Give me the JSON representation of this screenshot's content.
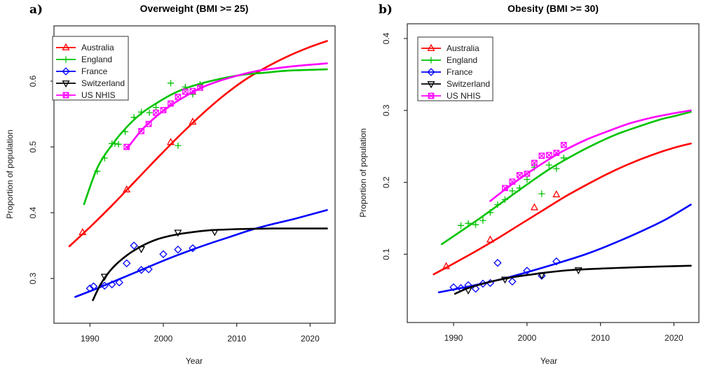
{
  "figure": {
    "background": "#ffffff",
    "box_color": "#2b2b2b",
    "legend_entries": [
      "Australia",
      "England",
      "France",
      "Switzerland",
      "US NHIS"
    ]
  },
  "chart_data": [
    {
      "type": "line",
      "panel_label": "a)",
      "title": "Overweight (BMI >= 25)",
      "xlabel": "Year",
      "ylabel": "Proportion of population",
      "xlim": [
        1985.1,
        2023.4
      ],
      "ylim": [
        0.232,
        0.684
      ],
      "xticks": [
        1990,
        2000,
        2010,
        2020
      ],
      "yticks": [
        0.3,
        0.4,
        0.5,
        0.6
      ],
      "grid": false,
      "legend_position": "top-left",
      "series": [
        {
          "name": "Australia",
          "color": "#ff0000",
          "marker": "triangle-up",
          "points": [
            [
              1989,
              0.37
            ],
            [
              1995,
              0.435
            ],
            [
              2001,
              0.507
            ],
            [
              2004,
              0.538
            ]
          ],
          "fit": [
            [
              1987.2,
              0.349
            ],
            [
              1990,
              0.378
            ],
            [
              1993,
              0.411
            ],
            [
              1996,
              0.446
            ],
            [
              1999,
              0.481
            ],
            [
              2002,
              0.515
            ],
            [
              2005,
              0.547
            ],
            [
              2008,
              0.576
            ],
            [
              2011,
              0.601
            ],
            [
              2014,
              0.621
            ],
            [
              2017,
              0.638
            ],
            [
              2020,
              0.652
            ],
            [
              2022.3,
              0.661
            ]
          ]
        },
        {
          "name": "England",
          "color": "#00c300",
          "marker": "plus",
          "points": [
            [
              1991,
              0.463
            ],
            [
              1992,
              0.483
            ],
            [
              1993,
              0.505
            ],
            [
              1993.4,
              0.505
            ],
            [
              1993.9,
              0.504
            ],
            [
              1994.8,
              0.523
            ],
            [
              1996,
              0.545
            ],
            [
              1997,
              0.553
            ],
            [
              1998.1,
              0.552
            ],
            [
              1999,
              0.56
            ],
            [
              2001,
              0.597
            ],
            [
              2002,
              0.502
            ],
            [
              2003,
              0.591
            ],
            [
              2004,
              0.58
            ],
            [
              2005,
              0.595
            ]
          ],
          "fit": [
            [
              1989.2,
              0.413
            ],
            [
              1991,
              0.468
            ],
            [
              1993,
              0.503
            ],
            [
              1995,
              0.53
            ],
            [
              1997,
              0.551
            ],
            [
              1999,
              0.566
            ],
            [
              2001,
              0.579
            ],
            [
              2003,
              0.589
            ],
            [
              2005,
              0.596
            ],
            [
              2008,
              0.604
            ],
            [
              2011,
              0.61
            ],
            [
              2014,
              0.613
            ],
            [
              2017,
              0.616
            ],
            [
              2022.3,
              0.618
            ]
          ]
        },
        {
          "name": "France",
          "color": "#0000ff",
          "marker": "diamond",
          "points": [
            [
              1990,
              0.285
            ],
            [
              1990.5,
              0.288
            ],
            [
              1992,
              0.289
            ],
            [
              1993,
              0.291
            ],
            [
              1994,
              0.294
            ],
            [
              1995,
              0.323
            ],
            [
              1996,
              0.35
            ],
            [
              1997,
              0.313
            ],
            [
              1998,
              0.314
            ],
            [
              2000,
              0.337
            ],
            [
              2002,
              0.344
            ],
            [
              2004,
              0.346
            ]
          ],
          "fit": [
            [
              1988,
              0.272
            ],
            [
              1991,
              0.285
            ],
            [
              1994,
              0.299
            ],
            [
              1997,
              0.313
            ],
            [
              2000,
              0.327
            ],
            [
              2003,
              0.34
            ],
            [
              2006,
              0.352
            ],
            [
              2009,
              0.363
            ],
            [
              2012,
              0.374
            ],
            [
              2015,
              0.383
            ],
            [
              2018,
              0.391
            ],
            [
              2022.3,
              0.404
            ]
          ]
        },
        {
          "name": "Switzerland",
          "color": "#000000",
          "marker": "triangle-down",
          "points": [
            [
              1992,
              0.303
            ],
            [
              1997,
              0.345
            ],
            [
              2002,
              0.37
            ],
            [
              2007,
              0.371
            ]
          ],
          "fit": [
            [
              1990.4,
              0.267
            ],
            [
              1991.5,
              0.292
            ],
            [
              1993,
              0.315
            ],
            [
              1995,
              0.335
            ],
            [
              1997,
              0.349
            ],
            [
              1999,
              0.359
            ],
            [
              2001,
              0.365
            ],
            [
              2003,
              0.369
            ],
            [
              2006,
              0.373
            ],
            [
              2010,
              0.375
            ],
            [
              2015,
              0.376
            ],
            [
              2022.3,
              0.376
            ]
          ]
        },
        {
          "name": "US NHIS",
          "color": "#ff00ff",
          "marker": "square-x",
          "points": [
            [
              1995,
              0.5
            ],
            [
              1997,
              0.524
            ],
            [
              1998,
              0.535
            ],
            [
              1999,
              0.552
            ],
            [
              2000,
              0.556
            ],
            [
              2001,
              0.566
            ],
            [
              2002,
              0.576
            ],
            [
              2003,
              0.584
            ],
            [
              2004,
              0.585
            ],
            [
              2005,
              0.59
            ]
          ],
          "fit": [
            [
              1995.1,
              0.498
            ],
            [
              1997,
              0.525
            ],
            [
              1999,
              0.546
            ],
            [
              2001,
              0.563
            ],
            [
              2003,
              0.577
            ],
            [
              2005,
              0.589
            ],
            [
              2007,
              0.598
            ],
            [
              2009,
              0.605
            ],
            [
              2011,
              0.611
            ],
            [
              2013,
              0.616
            ],
            [
              2015,
              0.619
            ],
            [
              2018,
              0.623
            ],
            [
              2022.3,
              0.627
            ]
          ]
        }
      ]
    },
    {
      "type": "line",
      "panel_label": "b)",
      "title": "Obesity (BMI >= 30)",
      "xlabel": "Year",
      "ylabel": "Proportion of population",
      "xlim": [
        1983.7,
        2023.4
      ],
      "ylim": [
        0.005,
        0.4205
      ],
      "xticks": [
        1990,
        2000,
        2010,
        2020
      ],
      "yticks": [
        0.1,
        0.2,
        0.3,
        0.4
      ],
      "grid": false,
      "legend_position": "top-left",
      "series": [
        {
          "name": "Australia",
          "color": "#ff0000",
          "marker": "triangle-up",
          "points": [
            [
              1989,
              0.083
            ],
            [
              1995,
              0.12
            ],
            [
              2001,
              0.165
            ],
            [
              2004,
              0.183
            ]
          ],
          "fit": [
            [
              1987.3,
              0.072
            ],
            [
              1990,
              0.087
            ],
            [
              1993,
              0.104
            ],
            [
              1996,
              0.122
            ],
            [
              1999,
              0.141
            ],
            [
              2002,
              0.16
            ],
            [
              2005,
              0.179
            ],
            [
              2008,
              0.196
            ],
            [
              2011,
              0.212
            ],
            [
              2014,
              0.226
            ],
            [
              2017,
              0.238
            ],
            [
              2020,
              0.248
            ],
            [
              2022.3,
              0.254
            ]
          ]
        },
        {
          "name": "England",
          "color": "#00c300",
          "marker": "plus",
          "points": [
            [
              1991,
              0.14
            ],
            [
              1992,
              0.143
            ],
            [
              1993,
              0.141
            ],
            [
              1994,
              0.147
            ],
            [
              1995,
              0.158
            ],
            [
              1996,
              0.169
            ],
            [
              1997,
              0.176
            ],
            [
              1998,
              0.188
            ],
            [
              1999,
              0.192
            ],
            [
              2000,
              0.204
            ],
            [
              2001,
              0.221
            ],
            [
              2002,
              0.184
            ],
            [
              2003,
              0.224
            ],
            [
              2004,
              0.219
            ],
            [
              2005,
              0.234
            ]
          ],
          "fit": [
            [
              1988.4,
              0.114
            ],
            [
              1991,
              0.132
            ],
            [
              1994,
              0.153
            ],
            [
              1997,
              0.175
            ],
            [
              2000,
              0.197
            ],
            [
              2003,
              0.218
            ],
            [
              2006,
              0.236
            ],
            [
              2009,
              0.252
            ],
            [
              2012,
              0.266
            ],
            [
              2015,
              0.277
            ],
            [
              2018,
              0.287
            ],
            [
              2020,
              0.292
            ],
            [
              2022.3,
              0.298
            ]
          ]
        },
        {
          "name": "France",
          "color": "#0000ff",
          "marker": "diamond",
          "points": [
            [
              1990,
              0.054
            ],
            [
              1991,
              0.053
            ],
            [
              1992,
              0.057
            ],
            [
              1993,
              0.052
            ],
            [
              1994,
              0.059
            ],
            [
              1995,
              0.06
            ],
            [
              1996,
              0.088
            ],
            [
              1998,
              0.062
            ],
            [
              2000,
              0.077
            ],
            [
              2002,
              0.07
            ],
            [
              2004,
              0.09
            ]
          ],
          "fit": [
            [
              1988,
              0.047
            ],
            [
              1992,
              0.055
            ],
            [
              1996,
              0.064
            ],
            [
              2000,
              0.075
            ],
            [
              2004,
              0.087
            ],
            [
              2008,
              0.1
            ],
            [
              2012,
              0.116
            ],
            [
              2016,
              0.134
            ],
            [
              2019,
              0.149
            ],
            [
              2022.3,
              0.169
            ]
          ]
        },
        {
          "name": "Switzerland",
          "color": "#000000",
          "marker": "triangle-down",
          "points": [
            [
              1992,
              0.05
            ],
            [
              1997,
              0.065
            ],
            [
              2002,
              0.071
            ],
            [
              2007,
              0.078
            ]
          ],
          "fit": [
            [
              1990.2,
              0.045
            ],
            [
              1992,
              0.053
            ],
            [
              1994,
              0.059
            ],
            [
              1996,
              0.064
            ],
            [
              1998,
              0.068
            ],
            [
              2000,
              0.071
            ],
            [
              2003,
              0.075
            ],
            [
              2006,
              0.078
            ],
            [
              2010,
              0.08
            ],
            [
              2015,
              0.082
            ],
            [
              2022.3,
              0.084
            ]
          ]
        },
        {
          "name": "US NHIS",
          "color": "#ff00ff",
          "marker": "square-x",
          "points": [
            [
              1997,
              0.192
            ],
            [
              1998,
              0.201
            ],
            [
              1999,
              0.21
            ],
            [
              2000,
              0.212
            ],
            [
              2001,
              0.227
            ],
            [
              2002,
              0.237
            ],
            [
              2003,
              0.238
            ],
            [
              2004,
              0.241
            ],
            [
              2005,
              0.252
            ]
          ],
          "fit": [
            [
              1995,
              0.174
            ],
            [
              1997,
              0.19
            ],
            [
              1999,
              0.205
            ],
            [
              2001,
              0.219
            ],
            [
              2003,
              0.232
            ],
            [
              2005,
              0.244
            ],
            [
              2008,
              0.259
            ],
            [
              2011,
              0.271
            ],
            [
              2014,
              0.282
            ],
            [
              2017,
              0.29
            ],
            [
              2020,
              0.296
            ],
            [
              2022.3,
              0.3
            ]
          ]
        }
      ]
    }
  ]
}
